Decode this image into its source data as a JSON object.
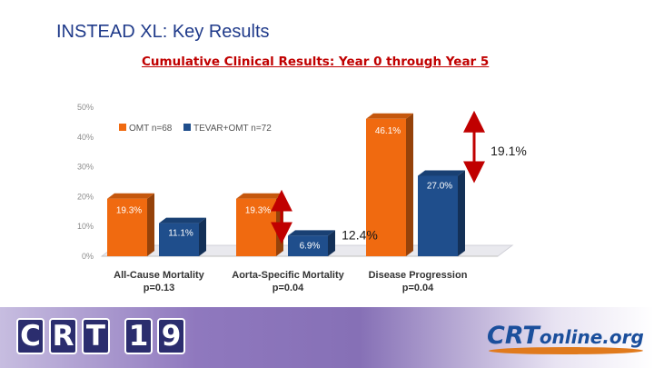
{
  "slide": {
    "title": "INSTEAD XL:  Key Results"
  },
  "chart_data": {
    "type": "bar",
    "title": "Cumulative Clinical Results: Year 0 through Year 5",
    "ylim": [
      0,
      50
    ],
    "yticks": [
      "0%",
      "10%",
      "20%",
      "30%",
      "40%",
      "50%"
    ],
    "categories": [
      "All-Cause Mortality",
      "Aorta-Specific Mortality",
      "Disease Progression"
    ],
    "category_pvalues": [
      "p=0.13",
      "p=0.04",
      "p=0.04"
    ],
    "series": [
      {
        "name": "OMT n=68",
        "color": "#f06a10",
        "values": [
          19.3,
          19.3,
          46.1
        ],
        "labels": [
          "19.3%",
          "19.3%",
          "46.1%"
        ]
      },
      {
        "name": "TEVAR+OMT n=72",
        "color": "#1f4e8c",
        "values": [
          11.1,
          6.9,
          27.0
        ],
        "labels": [
          "11.1%",
          "6.9%",
          "27.0%"
        ]
      }
    ],
    "legend": "top-left",
    "grid": false,
    "annotations": [
      {
        "text": "19.1%",
        "category": "Disease Progression",
        "color": "#c00000"
      },
      {
        "text": "12.4%",
        "category": "Aorta-Specific Mortality",
        "color": "#c00000"
      }
    ]
  },
  "footer": {
    "crt_logo_letters": [
      "C",
      "R",
      "T",
      "1",
      "9"
    ],
    "crtonline_primary": "CRT",
    "crtonline_secondary": "online.org"
  }
}
